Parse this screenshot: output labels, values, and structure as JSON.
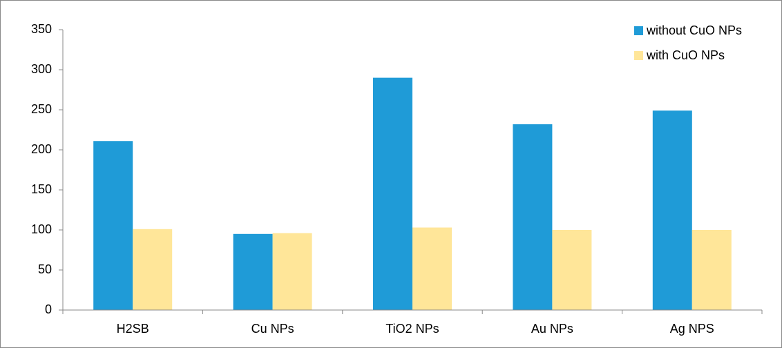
{
  "chart_data": {
    "type": "bar",
    "categories": [
      "H2SB",
      "Cu NPs",
      "TiO2 NPs",
      "Au NPs",
      "Ag NPS"
    ],
    "series": [
      {
        "name": "without CuO NPs",
        "color": "#1f9bd7",
        "values": [
          211,
          95,
          290,
          232,
          249
        ]
      },
      {
        "name": "with CuO NPs",
        "color": "#ffe699",
        "values": [
          101,
          96,
          103,
          100,
          100
        ]
      }
    ],
    "ylim": [
      0,
      350
    ],
    "yticks": [
      0,
      50,
      100,
      150,
      200,
      250,
      300,
      350
    ],
    "grid": false,
    "legend": "top-right"
  }
}
